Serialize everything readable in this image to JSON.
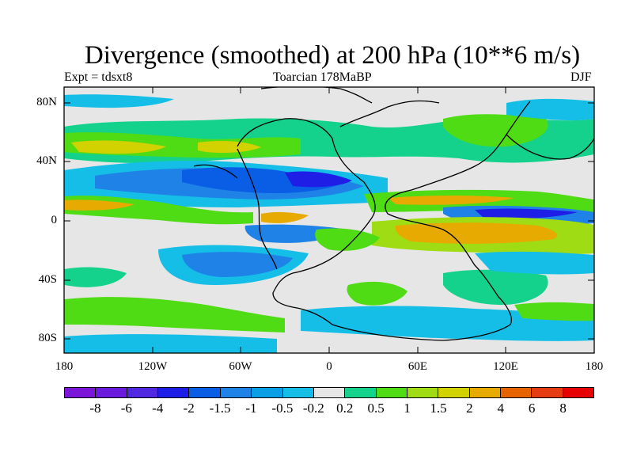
{
  "title": "Divergence (smoothed) at 200 hPa (10**6 m/s)",
  "subtitle_left": "Expt = tdsxt8",
  "subtitle_center": "Toarcian 178MaBP",
  "subtitle_right": "DJF",
  "y_axis_labels": [
    "80N",
    "40N",
    "0",
    "40S",
    "80S"
  ],
  "x_axis_labels": [
    "180",
    "120W",
    "60W",
    "0",
    "60E",
    "120E",
    "180"
  ],
  "colorbar": {
    "colors": [
      "#7b16d8",
      "#6a1adc",
      "#4f28e0",
      "#1e1ee6",
      "#0a5ee6",
      "#1e82e6",
      "#0a9ee6",
      "#14bee6",
      "#e6e6e6",
      "#14d28c",
      "#50dc14",
      "#a0dc14",
      "#d2d200",
      "#e6aa00",
      "#e66400",
      "#e63c14",
      "#e60000"
    ],
    "labels": [
      "-8",
      "-6",
      "-4",
      "-2",
      "-1.5",
      "-1",
      "-0.5",
      "-0.2",
      "0.2",
      "0.5",
      "1",
      "1.5",
      "2",
      "4",
      "6",
      "8"
    ]
  },
  "field_colors": {
    "neutral": "#e6e6e6",
    "weak_pos": "#14d28c",
    "pos1": "#50dc14",
    "pos15": "#a0dc14",
    "pos2": "#d2d200",
    "pos4": "#e6aa00",
    "weak_neg": "#14bee6",
    "neg05": "#0a9ee6",
    "neg1": "#1e82e6",
    "neg15": "#0a5ee6",
    "neg2": "#1e1ee6"
  }
}
